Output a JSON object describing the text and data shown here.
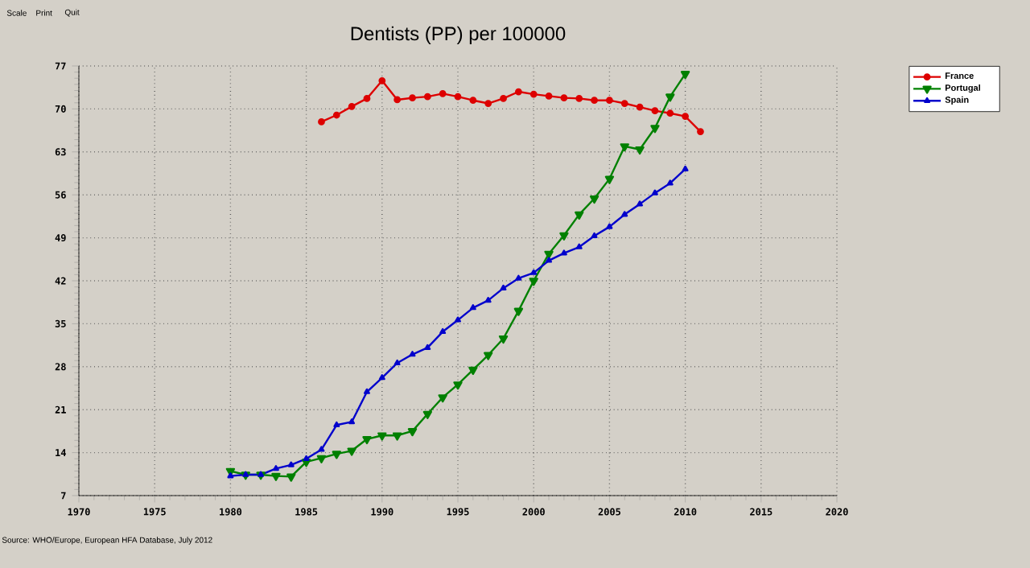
{
  "chart_data": {
    "type": "line",
    "title": "Dentists (PP) per 100000",
    "annotations": [
      "Scale",
      "Print",
      "Quit",
      "Source: WHO/Europe, European HFA Database, July 2012"
    ],
    "xlim": [
      1970,
      2020
    ],
    "xticks": [
      1970,
      1975,
      1980,
      1985,
      1990,
      1995,
      2000,
      2005,
      2010,
      2015,
      2020
    ],
    "ylim": [
      7,
      77
    ],
    "yticks": [
      7,
      14,
      21,
      28,
      35,
      42,
      49,
      56,
      63,
      70,
      77
    ],
    "grid": true,
    "legend": "top right",
    "line_style": "solid",
    "series": [
      {
        "name": "France",
        "color": "#dd0000",
        "marker": "circle",
        "x": [
          1986,
          1987,
          1988,
          1989,
          1990,
          1991,
          1992,
          1993,
          1994,
          1995,
          1996,
          1997,
          1998,
          1999,
          2000,
          2001,
          2002,
          2003,
          2004,
          2005,
          2006,
          2007,
          2008,
          2009,
          2010,
          2011
        ],
        "values": [
          67.9,
          69.0,
          70.4,
          71.7,
          74.6,
          71.5,
          71.8,
          72.0,
          72.5,
          72.0,
          71.4,
          70.9,
          71.7,
          72.8,
          72.4,
          72.1,
          71.8,
          71.7,
          71.4,
          71.4,
          70.9,
          70.3,
          69.7,
          69.3,
          68.8,
          66.3
        ]
      },
      {
        "name": "Portugal",
        "color": "#008000",
        "marker": "triangle-down",
        "x": [
          1980,
          1981,
          1982,
          1983,
          1984,
          1985,
          1986,
          1987,
          1988,
          1989,
          1990,
          1991,
          1992,
          1993,
          1994,
          1995,
          1996,
          1997,
          1998,
          1999,
          2000,
          2001,
          2002,
          2003,
          2004,
          2005,
          2006,
          2007,
          2008,
          2009,
          2010
        ],
        "values": [
          11.0,
          10.4,
          10.4,
          10.2,
          10.1,
          12.5,
          13.1,
          13.8,
          14.3,
          16.2,
          16.8,
          16.8,
          17.5,
          20.3,
          23.0,
          25.1,
          27.5,
          29.9,
          32.6,
          37.1,
          42.0,
          46.4,
          49.4,
          52.8,
          55.4,
          58.6,
          63.9,
          63.4,
          66.9,
          72.0,
          75.7
        ]
      },
      {
        "name": "Spain",
        "color": "#0000cc",
        "marker": "triangle",
        "x": [
          1980,
          1981,
          1982,
          1983,
          1984,
          1985,
          1986,
          1987,
          1988,
          1989,
          1990,
          1991,
          1992,
          1993,
          1994,
          1995,
          1996,
          1997,
          1998,
          1999,
          2000,
          2001,
          2002,
          2003,
          2004,
          2005,
          2006,
          2007,
          2008,
          2009,
          2010
        ],
        "values": [
          10.2,
          10.4,
          10.4,
          11.4,
          12.0,
          13.0,
          14.5,
          18.5,
          19.0,
          23.9,
          26.2,
          28.6,
          30.0,
          31.1,
          33.7,
          35.6,
          37.6,
          38.8,
          40.8,
          42.4,
          43.3,
          45.3,
          46.5,
          47.5,
          49.3,
          50.8,
          52.8,
          54.5,
          56.3,
          57.9,
          60.2
        ]
      }
    ]
  }
}
